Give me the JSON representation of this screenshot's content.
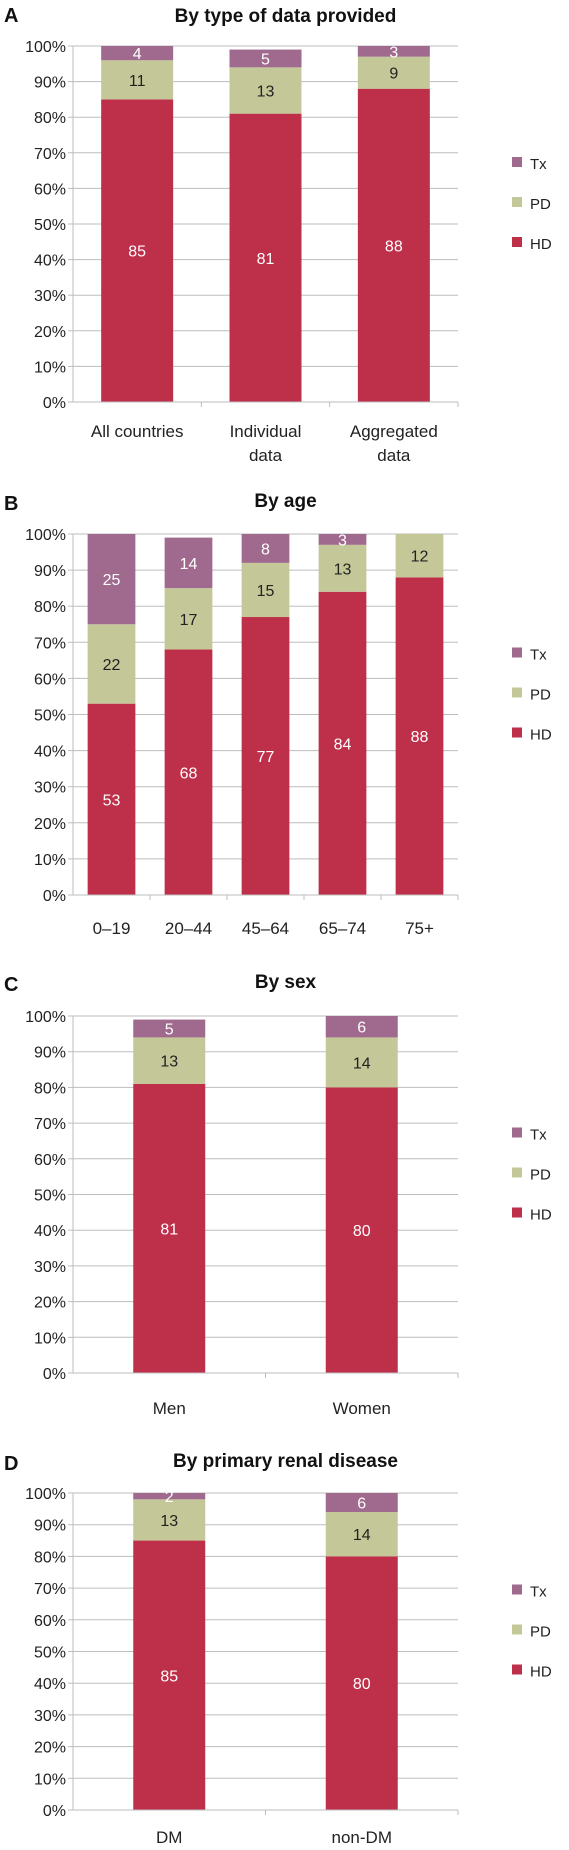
{
  "colors": {
    "HD": "#BE2F4A",
    "PD": "#C4C898",
    "Tx": "#9F6A8E",
    "grid": "#BDBDBD",
    "axis_text": "#222222",
    "title_text": "#111111"
  },
  "chart_data": [
    {
      "panel_letter": "A",
      "type": "bar",
      "stacked": true,
      "title": "By type of data provided",
      "categories": [
        "All countries",
        "Individual\ndata",
        "Aggregated\ndata"
      ],
      "series": [
        {
          "name": "HD",
          "values": [
            85,
            81,
            88
          ],
          "labels": [
            "85",
            "81",
            "88"
          ]
        },
        {
          "name": "PD",
          "values": [
            11,
            13,
            9
          ],
          "labels": [
            "11",
            "13",
            "9"
          ]
        },
        {
          "name": "Tx",
          "values": [
            4,
            5,
            3
          ],
          "labels": [
            "4",
            "5",
            "3"
          ]
        }
      ],
      "ylim": [
        0,
        100
      ],
      "y_ticks": [
        "0%",
        "10%",
        "20%",
        "30%",
        "40%",
        "50%",
        "60%",
        "70%",
        "80%",
        "90%",
        "100%"
      ],
      "legend": [
        "Tx",
        "PD",
        "HD"
      ],
      "legend_position": "right",
      "grid": true
    },
    {
      "panel_letter": "B",
      "type": "bar",
      "stacked": true,
      "title": "By age",
      "categories": [
        "0–19",
        "20–44",
        "45–64",
        "65–74",
        "75+"
      ],
      "series": [
        {
          "name": "HD",
          "values": [
            53,
            68,
            77,
            84,
            88
          ],
          "labels": [
            "53",
            "68",
            "77",
            "84",
            "88"
          ]
        },
        {
          "name": "PD",
          "values": [
            22,
            17,
            15,
            13,
            12
          ],
          "labels": [
            "22",
            "17",
            "15",
            "13",
            "12"
          ]
        },
        {
          "name": "Tx",
          "values": [
            25,
            14,
            8,
            3,
            1
          ],
          "labels": [
            "25",
            "14",
            "8",
            "3",
            ""
          ]
        }
      ],
      "ylim": [
        0,
        100
      ],
      "y_ticks": [
        "0%",
        "10%",
        "20%",
        "30%",
        "40%",
        "50%",
        "60%",
        "70%",
        "80%",
        "90%",
        "100%"
      ],
      "legend": [
        "Tx",
        "PD",
        "HD"
      ],
      "legend_position": "right",
      "grid": true
    },
    {
      "panel_letter": "C",
      "type": "bar",
      "stacked": true,
      "title": "By sex",
      "categories": [
        "Men",
        "Women"
      ],
      "series": [
        {
          "name": "HD",
          "values": [
            81,
            80
          ],
          "labels": [
            "81",
            "80"
          ]
        },
        {
          "name": "PD",
          "values": [
            13,
            14
          ],
          "labels": [
            "13",
            "14"
          ]
        },
        {
          "name": "Tx",
          "values": [
            5,
            6
          ],
          "labels": [
            "5",
            "6"
          ]
        }
      ],
      "ylim": [
        0,
        100
      ],
      "y_ticks": [
        "0%",
        "10%",
        "20%",
        "30%",
        "40%",
        "50%",
        "60%",
        "70%",
        "80%",
        "90%",
        "100%"
      ],
      "legend": [
        "Tx",
        "PD",
        "HD"
      ],
      "legend_position": "right",
      "grid": true
    },
    {
      "panel_letter": "D",
      "type": "bar",
      "stacked": true,
      "title": "By primary renal disease",
      "categories": [
        "DM",
        "non-DM"
      ],
      "series": [
        {
          "name": "HD",
          "values": [
            85,
            80
          ],
          "labels": [
            "85",
            "80"
          ]
        },
        {
          "name": "PD",
          "values": [
            13,
            14
          ],
          "labels": [
            "13",
            "14"
          ]
        },
        {
          "name": "Tx",
          "values": [
            2,
            6
          ],
          "labels": [
            "2",
            "6"
          ]
        }
      ],
      "ylim": [
        0,
        100
      ],
      "y_ticks": [
        "0%",
        "10%",
        "20%",
        "30%",
        "40%",
        "50%",
        "60%",
        "70%",
        "80%",
        "90%",
        "100%"
      ],
      "legend": [
        "Tx",
        "PD",
        "HD"
      ],
      "legend_position": "right",
      "grid": true
    }
  ]
}
